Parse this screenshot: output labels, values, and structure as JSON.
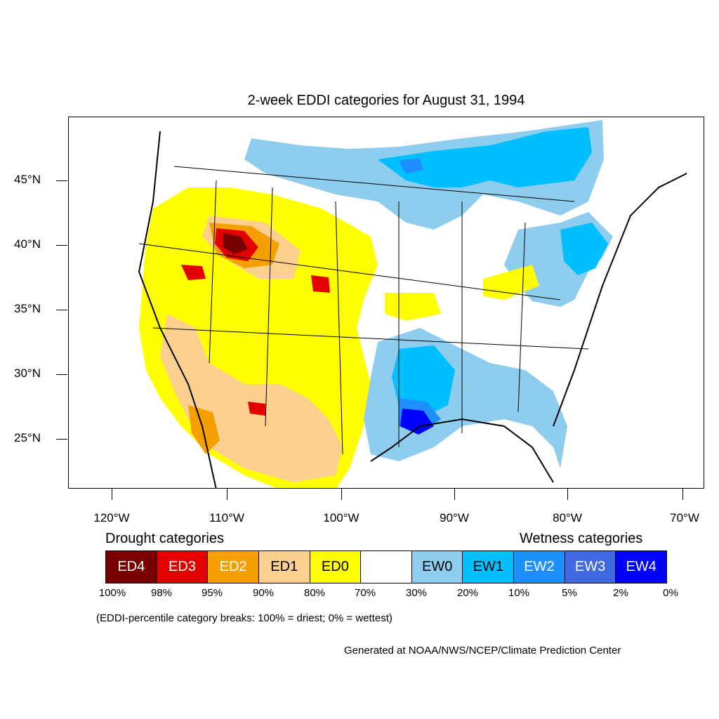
{
  "title": "2-week EDDI categories for August 31, 1994",
  "lat_labels": [
    "45°N",
    "40°N",
    "35°N",
    "30°N",
    "25°N"
  ],
  "lon_labels": [
    "120°W",
    "110°W",
    "100°W",
    "90°W",
    "80°W",
    "70°W"
  ],
  "legend": {
    "drought_heading": "Drought categories",
    "wetness_heading": "Wetness categories",
    "categories": [
      {
        "label": "ED4",
        "color": "#7a0000",
        "text_color": "#ffffff"
      },
      {
        "label": "ED3",
        "color": "#e30000",
        "text_color": "#ffffff"
      },
      {
        "label": "ED2",
        "color": "#f5a000",
        "text_color": "#ffffff"
      },
      {
        "label": "ED1",
        "color": "#fbd08f",
        "text_color": "#000000"
      },
      {
        "label": "ED0",
        "color": "#ffff00",
        "text_color": "#000000"
      },
      {
        "label": "",
        "color": "#ffffff",
        "text_color": "#000000"
      },
      {
        "label": "EW0",
        "color": "#8ecdee",
        "text_color": "#000000"
      },
      {
        "label": "EW1",
        "color": "#00bfff",
        "text_color": "#000000"
      },
      {
        "label": "EW2",
        "color": "#1e8fff",
        "text_color": "#ffffff"
      },
      {
        "label": "EW3",
        "color": "#4169e1",
        "text_color": "#ffffff"
      },
      {
        "label": "EW4",
        "color": "#0000ff",
        "text_color": "#ffffff"
      }
    ],
    "breaks": [
      "100%",
      "98%",
      "95%",
      "90%",
      "80%",
      "70%",
      "30%",
      "20%",
      "10%",
      "5%",
      "2%",
      "0%"
    ]
  },
  "note": "(EDDI-percentile category breaks: 100% = driest; 0% = wettest)",
  "credit": "Generated at NOAA/NWS/NCEP/Climate Prediction Center"
}
